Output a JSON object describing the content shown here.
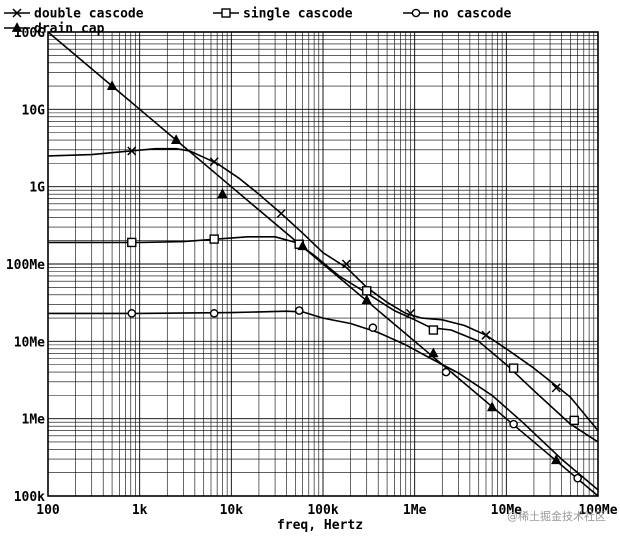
{
  "chart_data": {
    "type": "line",
    "title": "",
    "xlabel": "freq, Hertz",
    "ylabel": "",
    "x_scale": "log",
    "y_scale": "log",
    "xlim": [
      100,
      100000000
    ],
    "ylim": [
      100000,
      100000000000
    ],
    "grid": true,
    "legend_position": "top-left",
    "x_ticks": [
      {
        "value": 100,
        "label": "100"
      },
      {
        "value": 1000,
        "label": "1k"
      },
      {
        "value": 10000,
        "label": "10k"
      },
      {
        "value": 100000,
        "label": "100k"
      },
      {
        "value": 1000000,
        "label": "1Me"
      },
      {
        "value": 10000000,
        "label": "10Me"
      },
      {
        "value": 100000000,
        "label": "100Me"
      }
    ],
    "y_ticks": [
      {
        "value": 100000,
        "label": "100k"
      },
      {
        "value": 1000000,
        "label": "1Me"
      },
      {
        "value": 10000000,
        "label": "10Me"
      },
      {
        "value": 100000000,
        "label": "100Me"
      },
      {
        "value": 1000000000,
        "label": "1G"
      },
      {
        "value": 10000000000,
        "label": "10G"
      },
      {
        "value": 100000000000,
        "label": "100G"
      }
    ],
    "series": [
      {
        "name": "double cascode",
        "marker": "x",
        "x": [
          100,
          300,
          800,
          1500,
          2500,
          3500,
          5000,
          7000,
          12000,
          20000,
          35000,
          60000,
          100000,
          180000,
          300000,
          500000,
          800000,
          1200000,
          2000000,
          3500000,
          6000000,
          10000000,
          20000000,
          50000000,
          100000000
        ],
        "y": [
          2500000000,
          2600000000,
          2900000000,
          3100000000,
          3100000000,
          2900000000,
          2400000000,
          2000000000,
          1300000000,
          800000000,
          450000000,
          250000000,
          140000000,
          90000000,
          50000000,
          32000000,
          23000000,
          20000000,
          19000000,
          16000000,
          12000000,
          8000000,
          4500000,
          1900000,
          700000
        ],
        "markers_x": [
          820,
          6500,
          35000,
          180000,
          900000,
          6000000,
          35000000
        ],
        "markers_y": [
          2900000000,
          2100000000,
          450000000,
          100000000,
          23000000,
          12000000,
          2500000
        ]
      },
      {
        "name": "single cascode",
        "marker": "square",
        "x": [
          100,
          500,
          1000,
          3000,
          7000,
          15000,
          30000,
          50000,
          80000,
          150000,
          300000,
          600000,
          1000000,
          1500000,
          2500000,
          5000000,
          10000000,
          20000000,
          50000000,
          100000000
        ],
        "y": [
          190000000,
          190000000,
          190000000,
          195000000,
          210000000,
          225000000,
          225000000,
          190000000,
          130000000,
          70000000,
          42000000,
          25000000,
          19000000,
          15000000,
          14000000,
          10000000,
          5000000,
          2300000,
          850000,
          500000
        ],
        "markers_x": [
          820,
          6500,
          55000,
          300000,
          1600000,
          12000000,
          55000000
        ],
        "markers_y": [
          190000000,
          210000000,
          180000000,
          45000000,
          14000000,
          4500000,
          950000
        ]
      },
      {
        "name": "no cascode",
        "marker": "circle",
        "x": [
          100,
          1000,
          10000,
          40000,
          60000,
          100000,
          200000,
          400000,
          800000,
          1500000,
          3000000,
          7000000,
          15000000,
          40000000,
          100000000
        ],
        "y": [
          23000000,
          23000000,
          23500000,
          24500000,
          24000000,
          20000000,
          17000000,
          13000000,
          9000000,
          6000000,
          3900000,
          2000000,
          900000,
          300000,
          120000
        ],
        "markers_x": [
          820,
          6500,
          55000,
          350000,
          2200000,
          12000000,
          60000000
        ],
        "markers_y": [
          23000000,
          23000000,
          25000000,
          15000000,
          4000000,
          850000,
          170000
        ]
      },
      {
        "name": "drain cap",
        "marker": "triangle",
        "x": [
          100,
          1000,
          10000,
          100000,
          1000000,
          10000000,
          100000000
        ],
        "y": [
          100000000000,
          10000000000,
          1000000000,
          100000000,
          10000000,
          1000000,
          100000
        ],
        "markers_x": [
          500,
          2500,
          8000,
          60000,
          300000,
          1600000,
          7000000,
          35000000
        ],
        "markers_y": [
          20000000000,
          4000000000,
          800000000,
          170000000,
          34000000,
          7000000,
          1400000,
          290000
        ]
      }
    ]
  },
  "watermark": "@稀土掘金技术社区"
}
